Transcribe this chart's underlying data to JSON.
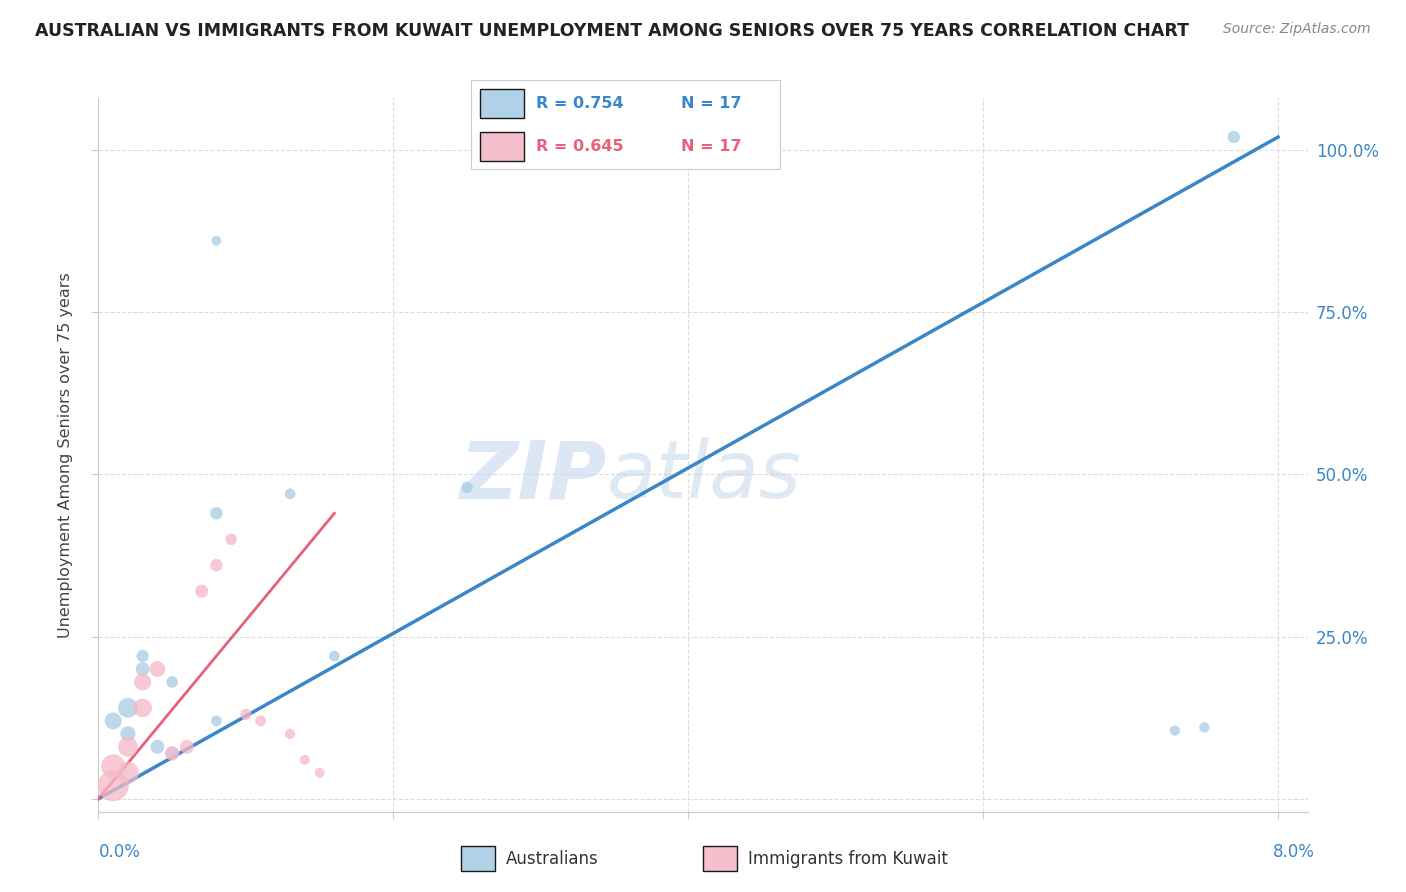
{
  "title": "AUSTRALIAN VS IMMIGRANTS FROM KUWAIT UNEMPLOYMENT AMONG SENIORS OVER 75 YEARS CORRELATION CHART",
  "source": "Source: ZipAtlas.com",
  "ylabel": "Unemployment Among Seniors over 75 years",
  "legend_blue_r": "R = 0.754",
  "legend_blue_n": "N = 17",
  "legend_pink_r": "R = 0.645",
  "legend_pink_n": "N = 17",
  "watermark_zip": "ZIP",
  "watermark_atlas": "atlas",
  "blue_color": "#a8cce4",
  "pink_color": "#f4b8c8",
  "blue_line_color": "#3a86c8",
  "pink_line_color": "#e8607a",
  "diag_color": "#cccccc",
  "blue_scatter_x": [
    0.008,
    0.013,
    0.008,
    0.003,
    0.003,
    0.005,
    0.002,
    0.001,
    0.002,
    0.004,
    0.005,
    0.016,
    0.025,
    0.008,
    0.075,
    0.073,
    0.077
  ],
  "blue_scatter_y": [
    0.86,
    0.47,
    0.44,
    0.22,
    0.2,
    0.18,
    0.14,
    0.12,
    0.1,
    0.08,
    0.07,
    0.22,
    0.48,
    0.12,
    0.11,
    0.105,
    1.02
  ],
  "blue_sizes": [
    50,
    60,
    80,
    80,
    100,
    70,
    200,
    150,
    120,
    100,
    80,
    60,
    70,
    60,
    55,
    55,
    80
  ],
  "pink_scatter_x": [
    0.001,
    0.001,
    0.002,
    0.002,
    0.003,
    0.003,
    0.004,
    0.005,
    0.006,
    0.007,
    0.008,
    0.009,
    0.01,
    0.011,
    0.013,
    0.014,
    0.015
  ],
  "pink_scatter_y": [
    0.02,
    0.05,
    0.04,
    0.08,
    0.14,
    0.18,
    0.2,
    0.07,
    0.08,
    0.32,
    0.36,
    0.4,
    0.13,
    0.12,
    0.1,
    0.06,
    0.04
  ],
  "pink_sizes": [
    500,
    300,
    250,
    200,
    180,
    150,
    130,
    110,
    100,
    90,
    80,
    70,
    65,
    60,
    55,
    50,
    50
  ],
  "blue_line_x": [
    0.0,
    0.08
  ],
  "blue_line_y": [
    0.0,
    1.02
  ],
  "pink_line_x": [
    0.0,
    0.016
  ],
  "pink_line_y": [
    0.0,
    0.44
  ],
  "diag_line_x": [
    0.0,
    0.08
  ],
  "diag_line_y": [
    0.0,
    1.02
  ],
  "xlim": [
    0.0,
    0.082
  ],
  "ylim": [
    -0.02,
    1.08
  ],
  "xticks": [
    0.0,
    0.02,
    0.04,
    0.06,
    0.08
  ],
  "yticks": [
    0.0,
    0.25,
    0.5,
    0.75,
    1.0
  ]
}
